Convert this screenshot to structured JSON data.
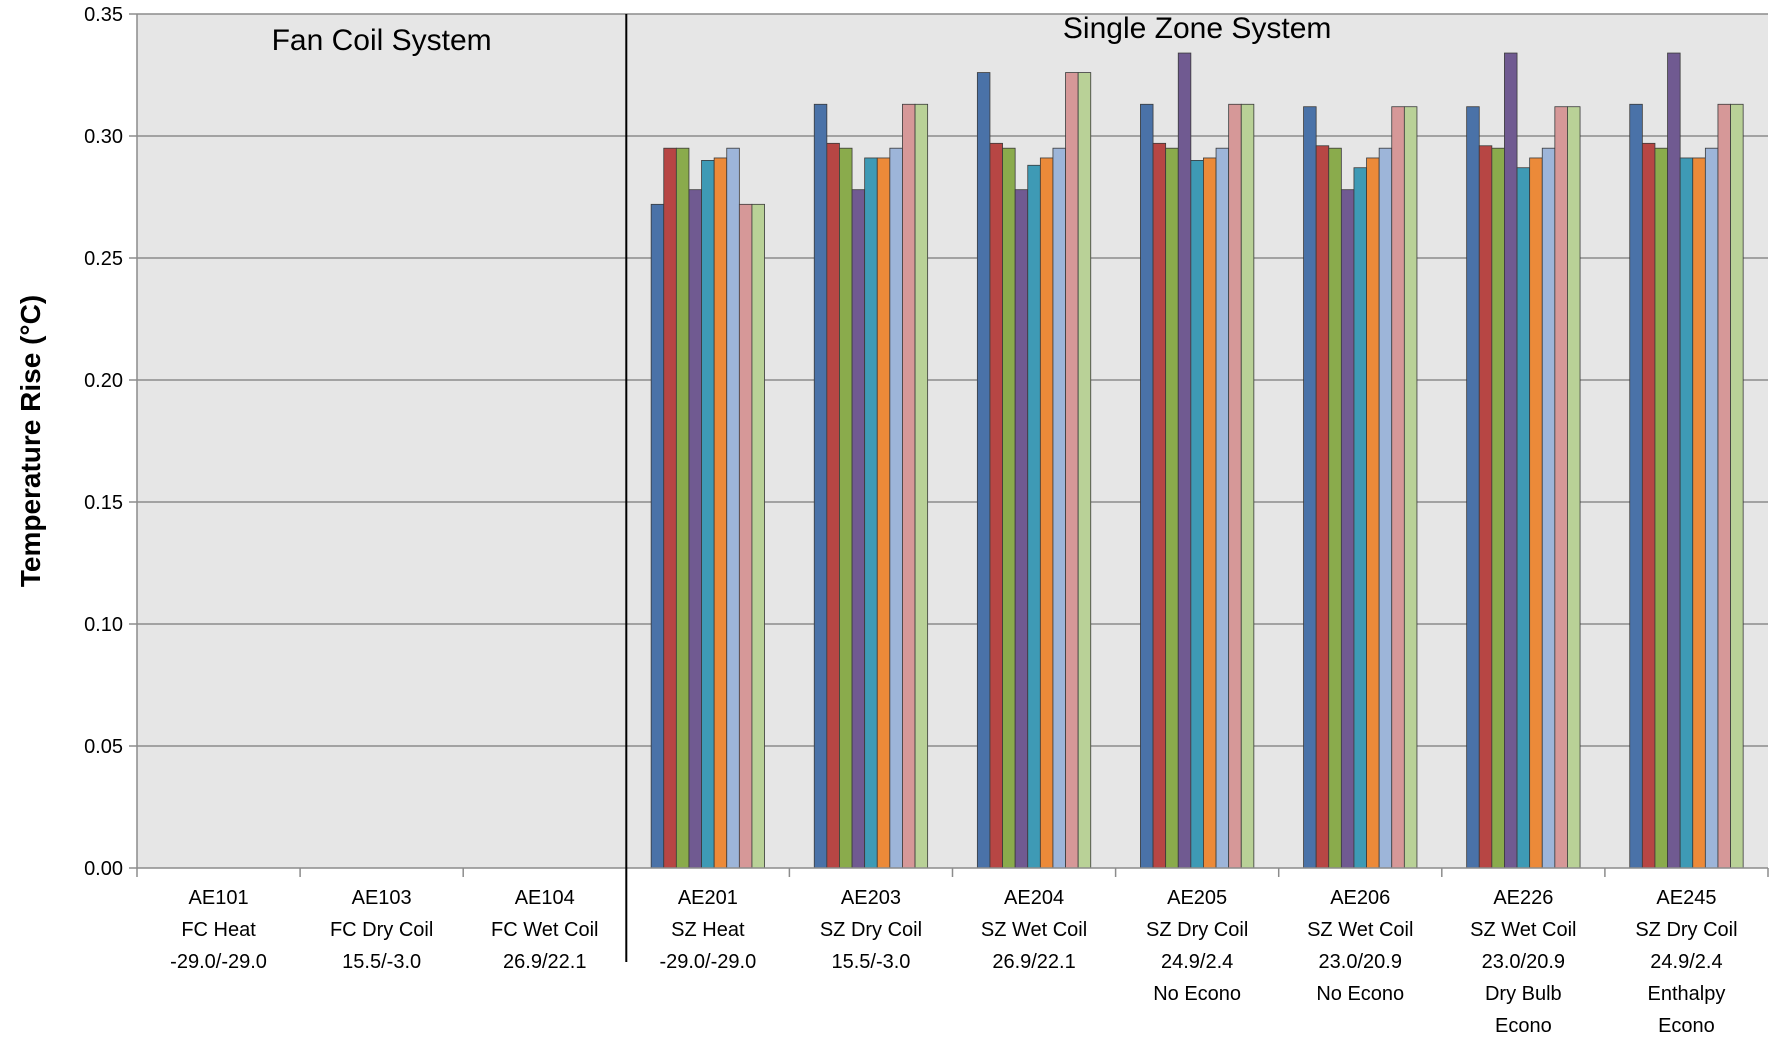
{
  "chart_data": {
    "type": "bar",
    "title": "",
    "xlabel": "",
    "ylabel": "Temperature Rise  (°C)",
    "ylim": [
      0,
      0.35
    ],
    "yticks": [
      "0.00",
      "0.05",
      "0.10",
      "0.15",
      "0.20",
      "0.25",
      "0.30",
      "0.35"
    ],
    "grid": true,
    "legend": "none",
    "sections": [
      {
        "label": "Fan Coil System",
        "start": 0,
        "end": 2
      },
      {
        "label": "Single Zone System",
        "start": 3,
        "end": 9
      }
    ],
    "categories": [
      [
        "AE101",
        "FC Heat",
        "-29.0/-29.0"
      ],
      [
        "AE103",
        "FC Dry Coil",
        "15.5/-3.0"
      ],
      [
        "AE104",
        "FC Wet Coil",
        "26.9/22.1"
      ],
      [
        "AE201",
        "SZ Heat",
        "-29.0/-29.0"
      ],
      [
        "AE203",
        "SZ Dry Coil",
        "15.5/-3.0"
      ],
      [
        "AE204",
        "SZ Wet Coil",
        "26.9/22.1"
      ],
      [
        "AE205",
        "SZ Dry Coil",
        "24.9/2.4",
        "No Econo"
      ],
      [
        "AE206",
        "SZ Wet Coil",
        "23.0/20.9",
        "No Econo"
      ],
      [
        "AE226",
        "SZ Wet Coil",
        "23.0/20.9",
        "Dry Bulb",
        "Econo"
      ],
      [
        "AE245",
        "SZ Dry Coil",
        "24.9/2.4",
        "Enthalpy",
        "Econo"
      ]
    ],
    "series": [
      {
        "color": "#4a72a8",
        "values": [
          null,
          null,
          null,
          0.272,
          0.313,
          0.326,
          0.313,
          0.312,
          0.312,
          0.313
        ]
      },
      {
        "color": "#b74644",
        "values": [
          null,
          null,
          null,
          0.295,
          0.297,
          0.297,
          0.297,
          0.296,
          0.296,
          0.297
        ]
      },
      {
        "color": "#8aab4c",
        "values": [
          null,
          null,
          null,
          0.295,
          0.295,
          0.295,
          0.295,
          0.295,
          0.295,
          0.295
        ]
      },
      {
        "color": "#705a91",
        "values": [
          null,
          null,
          null,
          0.278,
          0.278,
          0.278,
          0.334,
          0.278,
          0.334,
          0.334
        ]
      },
      {
        "color": "#3e9ab5",
        "values": [
          null,
          null,
          null,
          0.29,
          0.291,
          0.288,
          0.29,
          0.287,
          0.287,
          0.291
        ]
      },
      {
        "color": "#ec8a39",
        "values": [
          null,
          null,
          null,
          0.291,
          0.291,
          0.291,
          0.291,
          0.291,
          0.291,
          0.291
        ]
      },
      {
        "color": "#9db5d9",
        "values": [
          null,
          null,
          null,
          0.295,
          0.295,
          0.295,
          0.295,
          0.295,
          0.295,
          0.295
        ]
      },
      {
        "color": "#d69898",
        "values": [
          null,
          null,
          null,
          0.272,
          0.313,
          0.326,
          0.313,
          0.312,
          0.312,
          0.313
        ]
      },
      {
        "color": "#b9d197",
        "values": [
          null,
          null,
          null,
          0.272,
          0.313,
          0.326,
          0.313,
          0.312,
          0.312,
          0.313
        ]
      }
    ]
  }
}
